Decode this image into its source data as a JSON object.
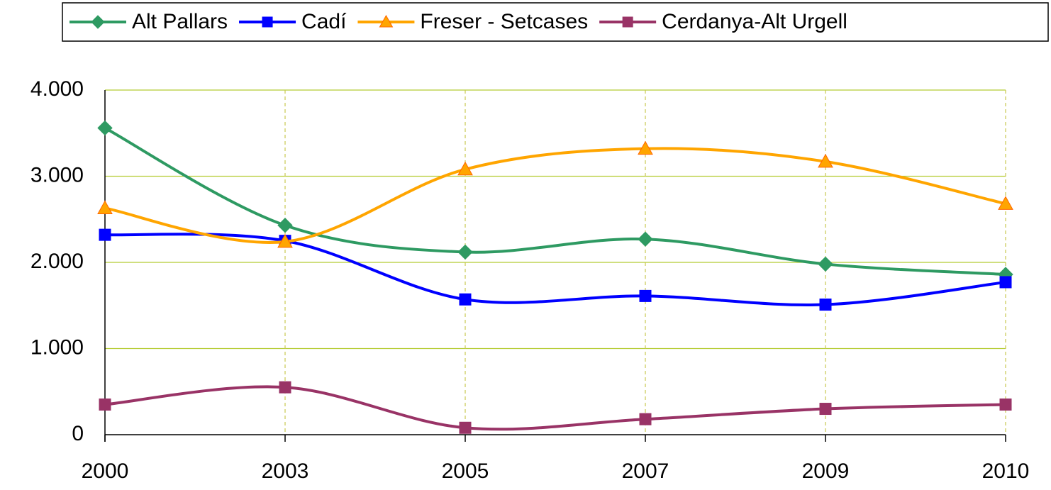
{
  "chart_data": {
    "type": "line",
    "categories": [
      "2000",
      "2003",
      "2005",
      "2007",
      "2009",
      "2010"
    ],
    "series": [
      {
        "name": "Alt Pallars",
        "color": "#2e9a62",
        "marker": "diamond",
        "values": [
          3560,
          2430,
          2120,
          2270,
          1980,
          1860
        ]
      },
      {
        "name": "Cadí",
        "color": "#0000ff",
        "marker": "square",
        "values": [
          2320,
          2250,
          1570,
          1610,
          1510,
          1770
        ]
      },
      {
        "name": "Freser - Setcases",
        "color": "#ffa500",
        "marker": "triangle",
        "values": [
          2630,
          2240,
          3080,
          3320,
          3170,
          2680
        ]
      },
      {
        "name": "Cerdanya-Alt Urgell",
        "color": "#993366",
        "marker": "square",
        "values": [
          350,
          550,
          80,
          180,
          300,
          350
        ]
      }
    ],
    "ylim": [
      0,
      4000
    ],
    "yticks": [
      0,
      {
        "value": 1000,
        "label": "1.000"
      },
      {
        "value": 2000,
        "label": "2.000"
      },
      {
        "value": 3000,
        "label": "3.000"
      },
      {
        "value": 4000,
        "label": "4.000"
      }
    ],
    "grid": true,
    "legend": "top",
    "smooth": true
  }
}
